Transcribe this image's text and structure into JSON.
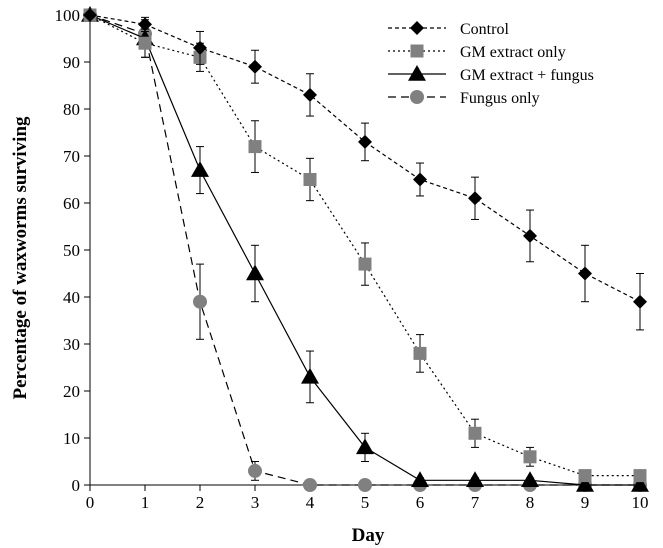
{
  "chart_data": {
    "type": "line",
    "title": "",
    "xlabel": "Day",
    "ylabel": "Percentage of waxworms surviving",
    "xlim": [
      0,
      10
    ],
    "ylim": [
      0,
      100
    ],
    "x_ticks": [
      "0",
      "1",
      "2",
      "3",
      "4",
      "5",
      "6",
      "7",
      "8",
      "9",
      "10"
    ],
    "y_ticks": [
      "0",
      "10",
      "20",
      "30",
      "40",
      "50",
      "60",
      "70",
      "80",
      "90",
      "100"
    ],
    "grid": false,
    "legend_position": "top-right",
    "x": [
      0,
      1,
      2,
      3,
      4,
      5,
      6,
      7,
      8,
      9,
      10
    ],
    "series": [
      {
        "name": "Control",
        "marker": "diamond",
        "line_style": "dash-dot-fine",
        "color": "#000000",
        "values": [
          100,
          98,
          93,
          89,
          83,
          73,
          65,
          61,
          53,
          45,
          39
        ],
        "errors": [
          0,
          1.5,
          3.5,
          3.5,
          4.5,
          4,
          3.5,
          4.5,
          5.5,
          6,
          6
        ]
      },
      {
        "name": "GM extract only",
        "marker": "square",
        "line_style": "dotted",
        "color": "#808080",
        "values": [
          100,
          94,
          91,
          72,
          65,
          47,
          28,
          11,
          6,
          2,
          2
        ],
        "errors": [
          0,
          3,
          3,
          5.5,
          4.5,
          4.5,
          4,
          3,
          2,
          0.5,
          0
        ]
      },
      {
        "name": "GM extract + fungus",
        "marker": "triangle",
        "line_style": "solid",
        "color": "#000000",
        "values": [
          100,
          95,
          67,
          45,
          23,
          8,
          1,
          1,
          1,
          0,
          0
        ],
        "errors": [
          0,
          4,
          5,
          6,
          5.5,
          3,
          0.5,
          0.5,
          0.5,
          0,
          0
        ]
      },
      {
        "name": "Fungus only",
        "marker": "circle",
        "line_style": "dashed",
        "color": "#808080",
        "values": [
          100,
          96,
          39,
          3,
          0,
          0,
          0,
          0,
          0,
          0,
          0
        ],
        "errors": [
          0,
          1,
          8,
          2,
          0,
          0,
          0,
          0,
          0,
          0,
          0
        ]
      }
    ]
  }
}
